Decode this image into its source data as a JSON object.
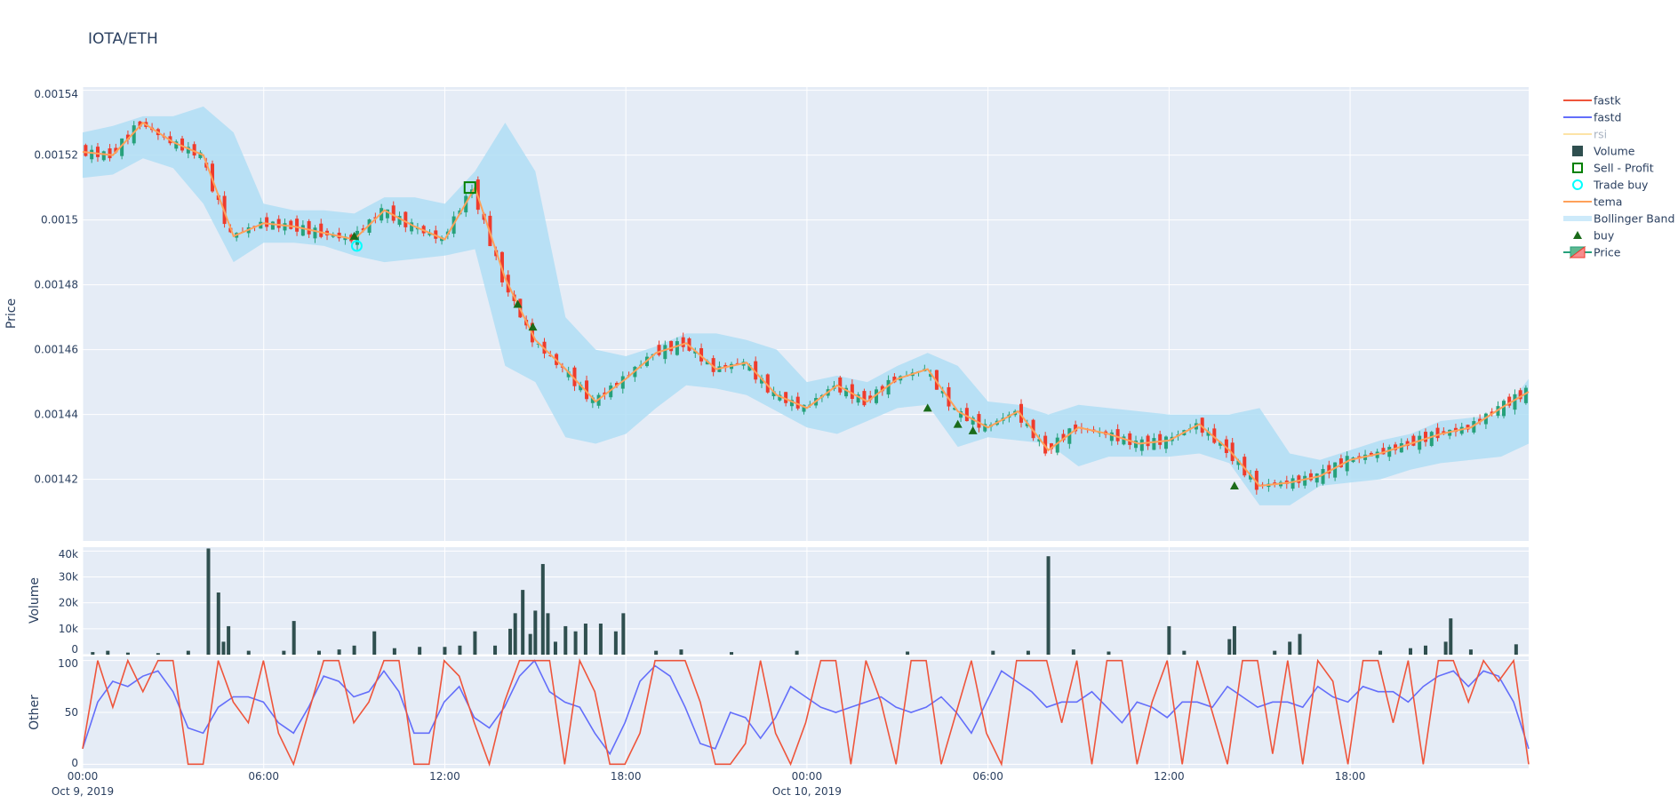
{
  "chart_data": {
    "type": "candlestick",
    "title": "IOTA/ETH",
    "colors": {
      "increasing": "#26a17b",
      "decreasing": "#ef3b2c",
      "tema": "#ffa15a",
      "bollinger": "#b0def5",
      "volume": "#2f4f4f",
      "fastk": "#ef553b",
      "fastd": "#636efa",
      "rsi": "#fde3a7",
      "buy": "#1a6b1a",
      "sell_profit": "#008000",
      "trade_buy": "#00ffff",
      "plot_bg": "#e5ecf6"
    },
    "x_range": [
      "2019-10-09 00:00",
      "2019-10-10 23:55"
    ],
    "x_ticks": [
      {
        "t": "2019-10-09 00:00",
        "label": "00:00",
        "sub": "Oct 9, 2019"
      },
      {
        "t": "2019-10-09 06:00",
        "label": "06:00",
        "sub": ""
      },
      {
        "t": "2019-10-09 12:00",
        "label": "12:00",
        "sub": ""
      },
      {
        "t": "2019-10-09 18:00",
        "label": "18:00",
        "sub": ""
      },
      {
        "t": "2019-10-10 00:00",
        "label": "00:00",
        "sub": "Oct 10, 2019"
      },
      {
        "t": "2019-10-10 06:00",
        "label": "06:00",
        "sub": ""
      },
      {
        "t": "2019-10-10 12:00",
        "label": "12:00",
        "sub": ""
      },
      {
        "t": "2019-10-10 18:00",
        "label": "18:00",
        "sub": ""
      }
    ],
    "panels": {
      "price": {
        "ylabel": "Price",
        "ylim": [
          0.001401,
          0.001541
        ],
        "ticks": [
          {
            "v": 0.00142,
            "label": "0.00142"
          },
          {
            "v": 0.00144,
            "label": "0.00144"
          },
          {
            "v": 0.00146,
            "label": "0.00146"
          },
          {
            "v": 0.00148,
            "label": "0.00148"
          },
          {
            "v": 0.0015,
            "label": "0.0015"
          },
          {
            "v": 0.00152,
            "label": "0.00152"
          },
          {
            "v": 0.00154,
            "label": "0.00154"
          }
        ]
      },
      "volume": {
        "ylabel": "Volume",
        "ylim": [
          0,
          41500
        ],
        "ticks": [
          {
            "v": 0,
            "label": "0"
          },
          {
            "v": 10000,
            "label": "10k"
          },
          {
            "v": 20000,
            "label": "20k"
          },
          {
            "v": 30000,
            "label": "30k"
          },
          {
            "v": 40000,
            "label": "40k"
          }
        ]
      },
      "other": {
        "ylabel": "Other",
        "ylim": [
          -4,
          104
        ],
        "ticks": [
          {
            "v": 0,
            "label": "0"
          },
          {
            "v": 50,
            "label": "50"
          },
          {
            "v": 100,
            "label": "100"
          }
        ]
      }
    },
    "legend": [
      "fastk",
      "fastd",
      "rsi",
      "Volume",
      "Sell - Profit",
      "Trade buy",
      "tema",
      "Bollinger Band",
      "buy",
      "Price"
    ],
    "legend_placement": "right",
    "times": [
      "2019-10-09 00:00",
      "2019-10-09 01:00",
      "2019-10-09 02:00",
      "2019-10-09 03:00",
      "2019-10-09 04:00",
      "2019-10-09 05:00",
      "2019-10-09 06:00",
      "2019-10-09 07:00",
      "2019-10-09 08:00",
      "2019-10-09 09:00",
      "2019-10-09 10:00",
      "2019-10-09 11:00",
      "2019-10-09 12:00",
      "2019-10-09 13:00",
      "2019-10-09 14:00",
      "2019-10-09 15:00",
      "2019-10-09 16:00",
      "2019-10-09 17:00",
      "2019-10-09 18:00",
      "2019-10-09 19:00",
      "2019-10-09 20:00",
      "2019-10-09 21:00",
      "2019-10-09 22:00",
      "2019-10-09 23:00",
      "2019-10-10 00:00",
      "2019-10-10 01:00",
      "2019-10-10 02:00",
      "2019-10-10 03:00",
      "2019-10-10 04:00",
      "2019-10-10 05:00",
      "2019-10-10 06:00",
      "2019-10-10 07:00",
      "2019-10-10 08:00",
      "2019-10-10 09:00",
      "2019-10-10 10:00",
      "2019-10-10 11:00",
      "2019-10-10 12:00",
      "2019-10-10 13:00",
      "2019-10-10 14:00",
      "2019-10-10 15:00",
      "2019-10-10 16:00",
      "2019-10-10 17:00",
      "2019-10-10 18:00",
      "2019-10-10 19:00",
      "2019-10-10 20:00",
      "2019-10-10 21:00",
      "2019-10-10 22:00",
      "2019-10-10 23:00",
      "2019-10-10 23:55"
    ],
    "tema": [
      0.001521,
      0.00152,
      0.00153,
      0.001524,
      0.00152,
      0.001495,
      0.001499,
      0.001498,
      0.001496,
      0.001494,
      0.001503,
      0.001498,
      0.001494,
      0.00151,
      0.001482,
      0.001463,
      0.001454,
      0.001444,
      0.001451,
      0.001459,
      0.001462,
      0.001454,
      0.001456,
      0.001446,
      0.001442,
      0.001449,
      0.001444,
      0.001451,
      0.001454,
      0.001441,
      0.001436,
      0.001441,
      0.001429,
      0.001436,
      0.001434,
      0.001431,
      0.001432,
      0.001437,
      0.001429,
      0.001418,
      0.001419,
      0.001421,
      0.001426,
      0.001428,
      0.001431,
      0.001434,
      0.001436,
      0.001442,
      0.001447
    ],
    "bollinger_upper": [
      0.001527,
      0.001529,
      0.001532,
      0.001532,
      0.001535,
      0.001527,
      0.001505,
      0.001503,
      0.001503,
      0.001502,
      0.001507,
      0.001507,
      0.001505,
      0.001515,
      0.00153,
      0.001515,
      0.00147,
      0.00146,
      0.001458,
      0.001461,
      0.001465,
      0.001465,
      0.001463,
      0.00146,
      0.00145,
      0.001452,
      0.00145,
      0.001455,
      0.001459,
      0.001455,
      0.001444,
      0.001443,
      0.00144,
      0.001443,
      0.001442,
      0.001441,
      0.00144,
      0.00144,
      0.00144,
      0.001442,
      0.001428,
      0.001426,
      0.001429,
      0.001432,
      0.001434,
      0.001438,
      0.001439,
      0.00144,
      0.001451
    ],
    "bollinger_lower": [
      0.001513,
      0.001514,
      0.001519,
      0.001516,
      0.001505,
      0.001487,
      0.001493,
      0.001493,
      0.001492,
      0.001489,
      0.001487,
      0.001488,
      0.001489,
      0.001491,
      0.001455,
      0.00145,
      0.001433,
      0.001431,
      0.001434,
      0.001442,
      0.001449,
      0.001448,
      0.001446,
      0.001441,
      0.001436,
      0.001434,
      0.001438,
      0.001442,
      0.001443,
      0.00143,
      0.001433,
      0.001432,
      0.001431,
      0.001424,
      0.001427,
      0.001427,
      0.001427,
      0.001428,
      0.001425,
      0.001412,
      0.001412,
      0.001418,
      0.001419,
      0.00142,
      0.001423,
      0.001425,
      0.001426,
      0.001427,
      0.001431
    ],
    "buy": [
      [
        "2019-10-09 09:00",
        0.001495
      ],
      [
        "2019-10-09 14:25",
        0.001474
      ],
      [
        "2019-10-09 14:55",
        0.001467
      ],
      [
        "2019-10-10 04:00",
        0.001442
      ],
      [
        "2019-10-10 05:00",
        0.001437
      ],
      [
        "2019-10-10 05:30",
        0.001435
      ],
      [
        "2019-10-10 14:10",
        0.001418
      ]
    ],
    "trade_buy": [
      [
        "2019-10-09 09:05",
        0.001492
      ]
    ],
    "sell_profit": [
      [
        "2019-10-09 12:50",
        0.00151
      ]
    ],
    "volume": [
      [
        "2019-10-09 00:20",
        1000
      ],
      [
        "2019-10-09 00:50",
        1500
      ],
      [
        "2019-10-09 01:30",
        800
      ],
      [
        "2019-10-09 02:30",
        600
      ],
      [
        "2019-10-09 03:30",
        1500
      ],
      [
        "2019-10-09 04:10",
        41000
      ],
      [
        "2019-10-09 04:30",
        24000
      ],
      [
        "2019-10-09 04:40",
        5000
      ],
      [
        "2019-10-09 04:50",
        11000
      ],
      [
        "2019-10-09 05:30",
        1500
      ],
      [
        "2019-10-09 06:40",
        1500
      ],
      [
        "2019-10-09 07:00",
        13000
      ],
      [
        "2019-10-09 07:50",
        1500
      ],
      [
        "2019-10-09 08:30",
        2000
      ],
      [
        "2019-10-09 09:00",
        3500
      ],
      [
        "2019-10-09 09:40",
        9000
      ],
      [
        "2019-10-09 10:20",
        2500
      ],
      [
        "2019-10-09 11:10",
        3000
      ],
      [
        "2019-10-09 12:00",
        3000
      ],
      [
        "2019-10-09 12:30",
        3500
      ],
      [
        "2019-10-09 13:00",
        9000
      ],
      [
        "2019-10-09 13:40",
        3500
      ],
      [
        "2019-10-09 14:10",
        10000
      ],
      [
        "2019-10-09 14:20",
        16000
      ],
      [
        "2019-10-09 14:35",
        25000
      ],
      [
        "2019-10-09 14:50",
        8000
      ],
      [
        "2019-10-09 15:00",
        17000
      ],
      [
        "2019-10-09 15:15",
        35000
      ],
      [
        "2019-10-09 15:25",
        16000
      ],
      [
        "2019-10-09 15:40",
        5000
      ],
      [
        "2019-10-09 16:00",
        11000
      ],
      [
        "2019-10-09 16:20",
        9000
      ],
      [
        "2019-10-09 16:40",
        12000
      ],
      [
        "2019-10-09 17:10",
        12000
      ],
      [
        "2019-10-09 17:40",
        9000
      ],
      [
        "2019-10-09 17:55",
        16000
      ],
      [
        "2019-10-09 19:00",
        1500
      ],
      [
        "2019-10-09 19:50",
        2000
      ],
      [
        "2019-10-09 21:30",
        1000
      ],
      [
        "2019-10-09 23:40",
        1500
      ],
      [
        "2019-10-10 03:20",
        1200
      ],
      [
        "2019-10-10 06:10",
        1500
      ],
      [
        "2019-10-10 07:20",
        1500
      ],
      [
        "2019-10-10 08:00",
        38000
      ],
      [
        "2019-10-10 08:50",
        2000
      ],
      [
        "2019-10-10 10:00",
        1200
      ],
      [
        "2019-10-10 12:00",
        11000
      ],
      [
        "2019-10-10 12:30",
        1500
      ],
      [
        "2019-10-10 14:00",
        6000
      ],
      [
        "2019-10-10 14:10",
        11000
      ],
      [
        "2019-10-10 15:30",
        1500
      ],
      [
        "2019-10-10 16:00",
        5000
      ],
      [
        "2019-10-10 16:20",
        8000
      ],
      [
        "2019-10-10 19:00",
        1500
      ],
      [
        "2019-10-10 20:00",
        2500
      ],
      [
        "2019-10-10 20:30",
        3500
      ],
      [
        "2019-10-10 21:10",
        5000
      ],
      [
        "2019-10-10 21:20",
        14000
      ],
      [
        "2019-10-10 22:00",
        2000
      ],
      [
        "2019-10-10 23:30",
        4000
      ]
    ],
    "fastk": [
      15,
      100,
      55,
      100,
      70,
      100,
      100,
      0,
      0,
      100,
      60,
      40,
      100,
      30,
      0,
      50,
      100,
      100,
      40,
      60,
      100,
      100,
      0,
      0,
      100,
      85,
      40,
      0,
      60,
      100,
      100,
      100,
      0,
      100,
      70,
      0,
      0,
      30,
      100,
      100,
      100,
      60,
      0,
      0,
      20,
      100,
      30,
      0,
      40,
      100,
      100,
      0,
      100,
      60,
      0,
      100,
      100,
      0,
      50,
      100,
      30,
      0,
      100,
      100,
      100,
      40,
      100,
      0,
      100,
      100,
      0,
      60,
      100,
      0,
      100,
      50,
      0,
      100,
      100,
      10,
      100,
      0,
      100,
      80,
      0,
      100,
      100,
      40,
      100,
      0,
      100,
      100,
      60,
      100,
      80,
      100,
      0
    ],
    "fastd": [
      15,
      60,
      80,
      75,
      85,
      90,
      70,
      35,
      30,
      55,
      65,
      65,
      60,
      40,
      30,
      55,
      85,
      80,
      65,
      70,
      90,
      70,
      30,
      30,
      60,
      75,
      45,
      35,
      55,
      85,
      100,
      70,
      60,
      55,
      30,
      10,
      40,
      80,
      95,
      85,
      55,
      20,
      15,
      50,
      45,
      25,
      45,
      75,
      65,
      55,
      50,
      55,
      60,
      65,
      55,
      50,
      55,
      65,
      50,
      30,
      60,
      90,
      80,
      70,
      55,
      60,
      60,
      70,
      55,
      40,
      60,
      55,
      45,
      60,
      60,
      55,
      75,
      65,
      55,
      60,
      60,
      55,
      75,
      65,
      60,
      75,
      70,
      70,
      60,
      75,
      85,
      90,
      75,
      90,
      85,
      60,
      15
    ]
  }
}
